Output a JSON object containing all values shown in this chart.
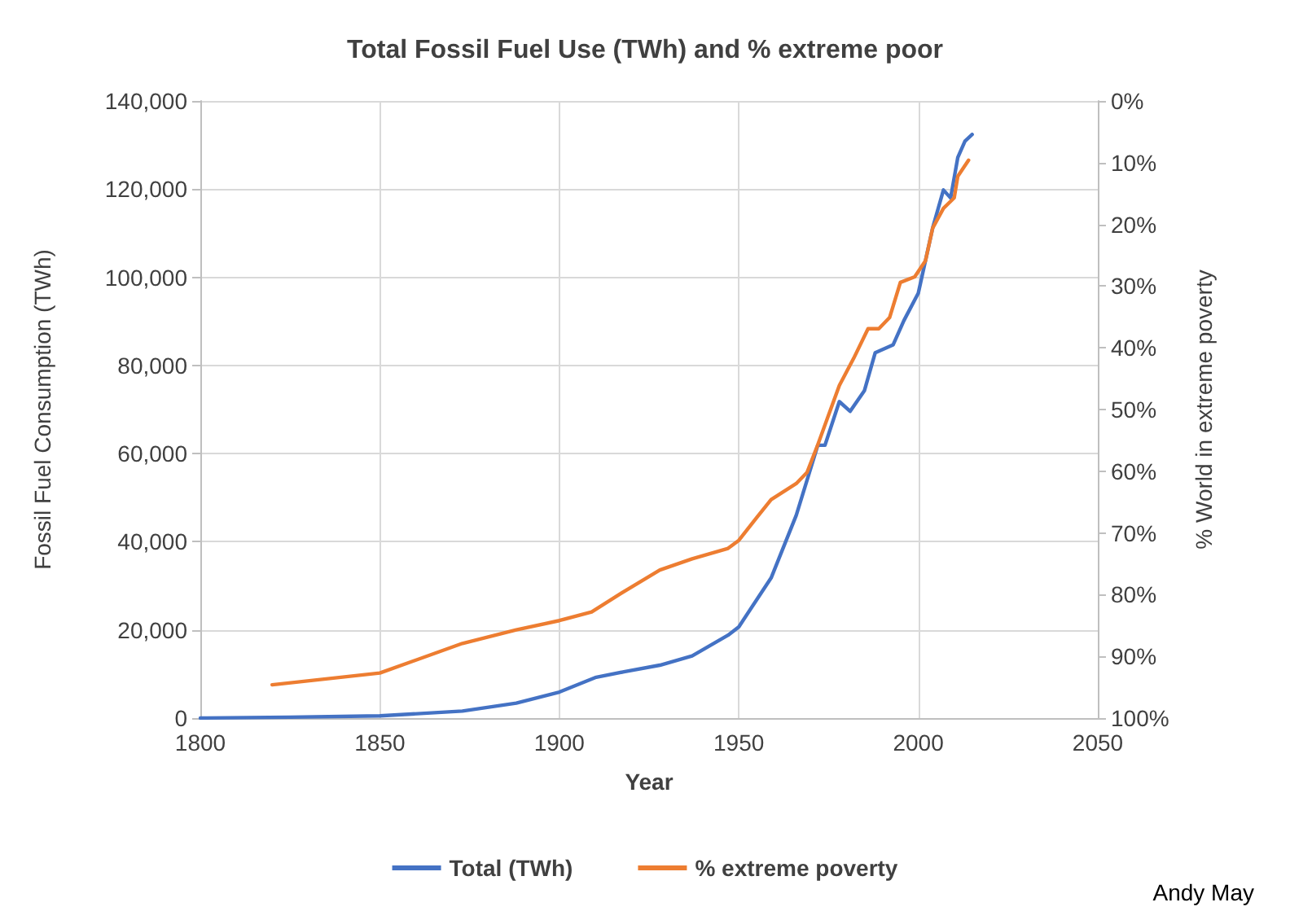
{
  "chart_data": {
    "type": "line",
    "title": "Total Fossil Fuel Use (TWh) and % extreme poor",
    "xlabel": "Year",
    "ylabel": "Fossil Fuel Consumption (TWh)",
    "y2label": "% World in extreme poverty",
    "xlim": [
      1800,
      2050
    ],
    "xticks": [
      1800,
      1850,
      1900,
      1950,
      2000,
      2050
    ],
    "ylim": [
      0,
      140000
    ],
    "yticks": [
      0,
      {
        "value": 20000,
        "label": "20,000"
      },
      {
        "value": 40000,
        "label": "40,000"
      },
      {
        "value": 60000,
        "label": "60,000"
      },
      {
        "value": 80000,
        "label": "80,000"
      },
      {
        "value": 100000,
        "label": "100,000"
      },
      {
        "value": 120000,
        "label": "120,000"
      },
      {
        "value": 140000,
        "label": "140,000"
      }
    ],
    "y2lim": [
      100,
      0
    ],
    "y2ticks": [
      {
        "value": 0,
        "label": "0%"
      },
      {
        "value": 10,
        "label": "10%"
      },
      {
        "value": 20,
        "label": "20%"
      },
      {
        "value": 30,
        "label": "30%"
      },
      {
        "value": 40,
        "label": "40%"
      },
      {
        "value": 50,
        "label": "50%"
      },
      {
        "value": 60,
        "label": "60%"
      },
      {
        "value": 70,
        "label": "70%"
      },
      {
        "value": 80,
        "label": "80%"
      },
      {
        "value": 90,
        "label": "90%"
      },
      {
        "value": 100,
        "label": "100%"
      }
    ],
    "series": [
      {
        "name": "Total (TWh)",
        "color": "#4472c4",
        "x": [
          1800,
          1825,
          1850,
          1873,
          1888,
          1900,
          1910,
          1918,
          1928,
          1937,
          1947,
          1950,
          1959,
          1966,
          1972,
          1974,
          1978,
          1981,
          1985,
          1988,
          1993,
          1996,
          2000,
          2004,
          2007,
          2009,
          2011,
          2013,
          2015
        ],
        "values": [
          0,
          200,
          500,
          1600,
          3400,
          5900,
          9200,
          10500,
          12000,
          14100,
          18800,
          20700,
          31800,
          46000,
          61900,
          61900,
          71800,
          69600,
          74300,
          82900,
          84700,
          90200,
          96400,
          111200,
          119800,
          118000,
          127200,
          130900,
          132400
        ]
      },
      {
        "name": "% extreme poverty",
        "color": "#ed7d31",
        "axis": "y2",
        "x": [
          1820,
          1850,
          1873,
          1888,
          1900,
          1909,
          1918,
          1928,
          1937,
          1947,
          1950,
          1955,
          1959,
          1966,
          1969,
          1972,
          1978,
          1982,
          1986,
          1989,
          1992,
          1995,
          1999,
          2002,
          2004,
          2007,
          2010,
          2011,
          2014
        ],
        "values": [
          94.6,
          92.7,
          87.9,
          85.7,
          84.2,
          82.8,
          79.5,
          76.0,
          74.2,
          72.5,
          71.2,
          67.5,
          64.6,
          62.0,
          60.2,
          55.7,
          46.1,
          41.7,
          36.9,
          36.9,
          35.1,
          29.4,
          28.5,
          25.9,
          20.6,
          17.4,
          15.7,
          12.2,
          9.6
        ]
      }
    ],
    "grid": true,
    "legend": "bottom",
    "marker": "none",
    "line_style": "solid",
    "annotations": [
      "Andy May"
    ]
  }
}
